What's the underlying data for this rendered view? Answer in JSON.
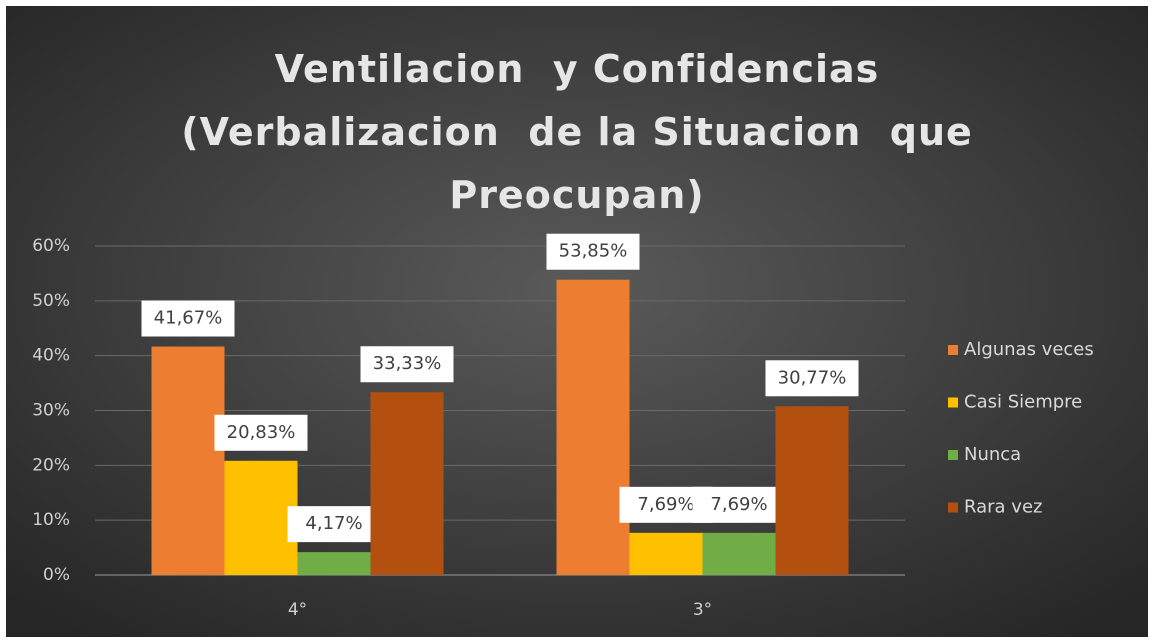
{
  "chart_data": {
    "type": "bar",
    "title": "Ventilacion  y Confidencias (Verbalizacion  de la Situacion  que Preocupan)",
    "categories": [
      "4°",
      "3°"
    ],
    "series": [
      {
        "name": "Algunas veces",
        "color": "#ed7d31",
        "values": [
          41.67,
          53.85
        ],
        "value_labels": [
          "41,67%",
          "53,85%"
        ]
      },
      {
        "name": "Casi Siempre",
        "color": "#ffc000",
        "values": [
          20.83,
          7.69
        ],
        "value_labels": [
          "20,83%",
          "7,69%"
        ]
      },
      {
        "name": "Nunca",
        "color": "#70ad47",
        "values": [
          4.17,
          7.69
        ],
        "value_labels": [
          "4,17%",
          "7,69%"
        ]
      },
      {
        "name": "Rara vez",
        "color": "#b4500f",
        "values": [
          33.33,
          30.77
        ],
        "value_labels": [
          "33,33%",
          "30,77%"
        ]
      }
    ],
    "ylim": [
      0,
      60
    ],
    "yticks": [
      {
        "value": 0,
        "label": "0%"
      },
      {
        "value": 10,
        "label": "10%"
      },
      {
        "value": 20,
        "label": "20%"
      },
      {
        "value": 30,
        "label": "30%"
      },
      {
        "value": 40,
        "label": "40%"
      },
      {
        "value": 50,
        "label": "50%"
      },
      {
        "value": 60,
        "label": "60%"
      }
    ],
    "grid": true,
    "legend": "right"
  }
}
